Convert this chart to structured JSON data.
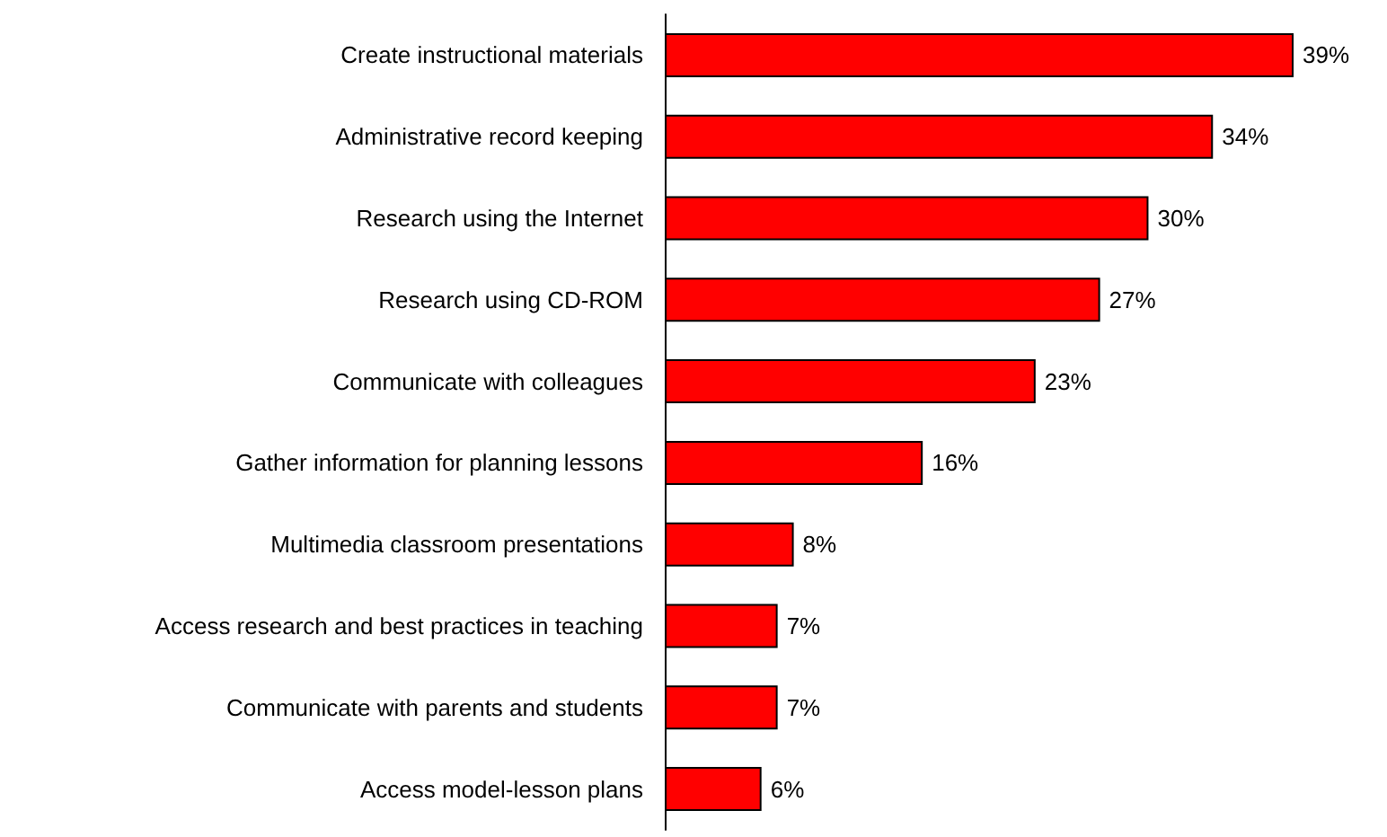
{
  "chart_data": {
    "type": "bar",
    "orientation": "horizontal",
    "categories": [
      "Create instructional materials",
      "Administrative record keeping",
      "Research using the Internet",
      "Research using CD-ROM",
      "Communicate with colleagues",
      "Gather information for planning lessons",
      "Multimedia classroom presentations",
      "Access research and best practices in teaching",
      "Communicate with parents and students",
      "Access model-lesson plans"
    ],
    "values": [
      39,
      34,
      30,
      27,
      23,
      16,
      8,
      7,
      7,
      6
    ],
    "value_labels": [
      "39%",
      "34%",
      "30%",
      "27%",
      "23%",
      "16%",
      "8%",
      "7%",
      "7%",
      "6%"
    ],
    "color": "#ff0000"
  }
}
